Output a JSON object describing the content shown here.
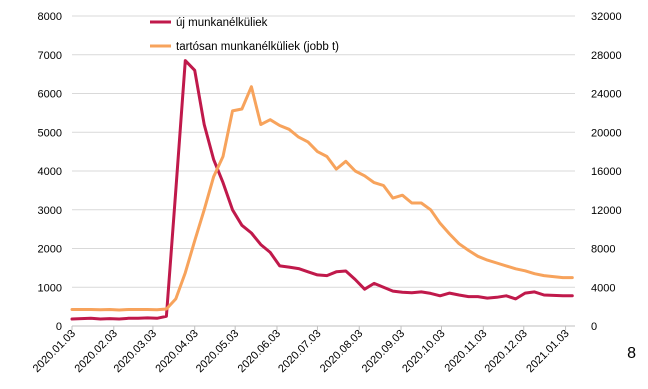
{
  "page_number": "8",
  "chart_data": {
    "type": "line",
    "title": "",
    "xlabel": "",
    "ylabel": "",
    "y_left_lim": [
      0,
      8000
    ],
    "y_right_lim": [
      0,
      32000
    ],
    "y_left_ticks": [
      "0",
      "1000",
      "2000",
      "3000",
      "4000",
      "5000",
      "6000",
      "7000",
      "8000"
    ],
    "y_right_ticks": [
      "0",
      "4000",
      "8000",
      "12000",
      "16000",
      "20000",
      "24000",
      "28000",
      "32000"
    ],
    "x_ticks": [
      "2020.01.03",
      "2020.02.03",
      "2020.03.03",
      "2020.04.03",
      "2020.05.03",
      "2020.06.03",
      "2020.07.03",
      "2020.08.03",
      "2020.09.03",
      "2020.10.03",
      "2020.11.03",
      "2020.12.03",
      "2021.01.03"
    ],
    "x_range": [
      "2020.01.03",
      "2021.01.10"
    ],
    "grid": true,
    "legend_position": "top-left",
    "series": [
      {
        "name": "új munkanélküliek",
        "axis": "left",
        "color": "#c0194b",
        "x": [
          "2020.01.03",
          "2020.01.10",
          "2020.01.17",
          "2020.01.24",
          "2020.01.31",
          "2020.02.07",
          "2020.02.14",
          "2020.02.21",
          "2020.02.28",
          "2020.03.06",
          "2020.03.13",
          "2020.03.20",
          "2020.03.27",
          "2020.04.03",
          "2020.04.10",
          "2020.04.17",
          "2020.04.24",
          "2020.05.01",
          "2020.05.08",
          "2020.05.15",
          "2020.05.22",
          "2020.05.29",
          "2020.06.05",
          "2020.06.12",
          "2020.06.19",
          "2020.06.26",
          "2020.07.03",
          "2020.07.10",
          "2020.07.17",
          "2020.07.24",
          "2020.07.31",
          "2020.08.07",
          "2020.08.14",
          "2020.08.21",
          "2020.08.28",
          "2020.09.04",
          "2020.09.11",
          "2020.09.18",
          "2020.09.25",
          "2020.10.02",
          "2020.10.09",
          "2020.10.16",
          "2020.10.23",
          "2020.10.30",
          "2020.11.06",
          "2020.11.13",
          "2020.11.20",
          "2020.11.27",
          "2020.12.04",
          "2020.12.11",
          "2020.12.18",
          "2020.12.25",
          "2021.01.01",
          "2021.01.08"
        ],
        "values": [
          180,
          190,
          200,
          180,
          190,
          180,
          200,
          200,
          210,
          200,
          250,
          3500,
          6850,
          6600,
          5200,
          4300,
          3700,
          3000,
          2600,
          2400,
          2100,
          1900,
          1550,
          1520,
          1480,
          1400,
          1320,
          1300,
          1400,
          1420,
          1200,
          950,
          1100,
          1000,
          900,
          870,
          860,
          880,
          840,
          780,
          850,
          800,
          760,
          760,
          720,
          740,
          780,
          700,
          850,
          880,
          800,
          790,
          780,
          780
        ]
      },
      {
        "name": "tartósan munkanélküliek (jobb t)",
        "axis": "right",
        "color": "#f7a35c",
        "x": [
          "2020.01.03",
          "2020.01.10",
          "2020.01.17",
          "2020.01.24",
          "2020.01.31",
          "2020.02.07",
          "2020.02.14",
          "2020.02.21",
          "2020.02.28",
          "2020.03.06",
          "2020.03.13",
          "2020.03.20",
          "2020.03.27",
          "2020.04.03",
          "2020.04.10",
          "2020.04.17",
          "2020.04.24",
          "2020.05.01",
          "2020.05.08",
          "2020.05.15",
          "2020.05.22",
          "2020.05.29",
          "2020.06.05",
          "2020.06.12",
          "2020.06.19",
          "2020.06.26",
          "2020.07.03",
          "2020.07.10",
          "2020.07.17",
          "2020.07.24",
          "2020.07.31",
          "2020.08.07",
          "2020.08.14",
          "2020.08.21",
          "2020.08.28",
          "2020.09.04",
          "2020.09.11",
          "2020.09.18",
          "2020.09.25",
          "2020.10.02",
          "2020.10.09",
          "2020.10.16",
          "2020.10.23",
          "2020.10.30",
          "2020.11.06",
          "2020.11.13",
          "2020.11.20",
          "2020.11.27",
          "2020.12.04",
          "2020.12.11",
          "2020.12.18",
          "2020.12.25",
          "2021.01.01",
          "2021.01.08"
        ],
        "values": [
          1700,
          1700,
          1700,
          1680,
          1700,
          1650,
          1700,
          1700,
          1700,
          1680,
          1750,
          2800,
          5500,
          8800,
          12000,
          15400,
          17500,
          22200,
          22400,
          24700,
          20800,
          21300,
          20700,
          20300,
          19500,
          19000,
          18000,
          17500,
          16200,
          17000,
          16000,
          15500,
          14800,
          14500,
          13200,
          13500,
          12700,
          12700,
          12000,
          10600,
          9500,
          8500,
          7800,
          7200,
          6800,
          6500,
          6200,
          5900,
          5700,
          5400,
          5200,
          5100,
          5000,
          5000
        ]
      }
    ]
  }
}
